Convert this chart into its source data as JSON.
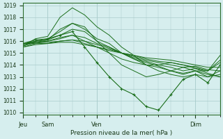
{
  "title": "",
  "xlabel": "Pression niveau de la mer( hPa )",
  "ylabel": "",
  "bg_color": "#d6eeee",
  "grid_color": "#aacccc",
  "line_color": "#1a6e1a",
  "marker_color": "#1a6e1a",
  "ylim": [
    1010,
    1019
  ],
  "yticks": [
    1010,
    1011,
    1012,
    1013,
    1014,
    1015,
    1016,
    1017,
    1018,
    1019
  ],
  "xtick_positions": [
    0,
    12,
    36,
    84
  ],
  "xtick_labels": [
    "Jeu",
    "Sam",
    "Ven",
    "Dim"
  ],
  "total_hours": 96,
  "lines": [
    {
      "x": [
        0,
        6,
        12,
        18,
        24,
        30,
        36,
        42,
        48,
        54,
        60,
        66,
        72,
        78,
        84,
        90,
        96
      ],
      "y": [
        1015.8,
        1016.1,
        1016.2,
        1016.5,
        1016.8,
        1015.5,
        1014.2,
        1013.0,
        1012.0,
        1011.5,
        1010.5,
        1010.2,
        1011.5,
        1012.8,
        1013.2,
        1012.5,
        1014.0
      ],
      "marker": true
    },
    {
      "x": [
        0,
        6,
        12,
        18,
        24,
        30,
        36,
        42,
        48,
        54,
        60,
        66,
        72,
        78,
        84,
        90,
        96
      ],
      "y": [
        1015.8,
        1016.0,
        1016.1,
        1017.0,
        1017.5,
        1017.2,
        1016.0,
        1015.0,
        1014.0,
        1013.5,
        1013.0,
        1013.2,
        1013.5,
        1013.8,
        1013.5,
        1013.5,
        1014.4
      ],
      "marker": false
    },
    {
      "x": [
        0,
        6,
        12,
        18,
        24,
        30,
        36,
        42,
        48,
        54,
        60,
        66,
        72,
        78,
        84,
        90,
        96
      ],
      "y": [
        1015.8,
        1015.9,
        1016.0,
        1016.3,
        1016.5,
        1016.0,
        1015.5,
        1015.0,
        1014.5,
        1014.2,
        1014.0,
        1014.0,
        1014.2,
        1014.0,
        1013.8,
        1013.5,
        1014.8
      ],
      "marker": false
    },
    {
      "x": [
        0,
        6,
        12,
        18,
        24,
        30,
        36,
        42,
        48,
        54,
        60,
        66,
        72,
        78,
        84,
        90,
        96
      ],
      "y": [
        1015.8,
        1015.9,
        1015.9,
        1016.0,
        1016.1,
        1015.8,
        1015.5,
        1015.2,
        1015.0,
        1014.8,
        1014.5,
        1014.3,
        1014.2,
        1014.0,
        1013.7,
        1013.5,
        1014.2
      ],
      "marker": false
    },
    {
      "x": [
        0,
        6,
        12,
        18,
        24,
        30,
        36,
        42,
        48,
        54,
        60,
        66,
        72,
        78,
        84,
        90,
        96
      ],
      "y": [
        1015.8,
        1015.8,
        1015.8,
        1015.9,
        1015.9,
        1015.7,
        1015.5,
        1015.3,
        1015.0,
        1014.8,
        1014.6,
        1014.5,
        1014.4,
        1014.2,
        1014.0,
        1013.8,
        1013.8
      ],
      "marker": false
    },
    {
      "x": [
        0,
        6,
        12,
        18,
        24,
        30,
        36,
        42,
        48,
        54,
        60,
        66,
        72,
        78,
        84,
        90,
        96
      ],
      "y": [
        1015.6,
        1016.2,
        1016.4,
        1018.0,
        1018.8,
        1018.2,
        1017.2,
        1016.5,
        1015.5,
        1014.8,
        1014.0,
        1013.5,
        1013.2,
        1013.0,
        1013.2,
        1013.0,
        1013.5
      ],
      "marker": false
    },
    {
      "x": [
        0,
        6,
        12,
        18,
        24,
        30,
        36,
        42,
        48,
        54,
        60,
        66,
        72,
        78,
        84,
        90,
        96
      ],
      "y": [
        1015.6,
        1016.0,
        1016.2,
        1016.8,
        1017.5,
        1017.0,
        1016.2,
        1015.8,
        1015.0,
        1014.5,
        1014.0,
        1013.8,
        1013.5,
        1013.2,
        1013.5,
        1013.0,
        1013.2
      ],
      "marker": false
    },
    {
      "x": [
        0,
        6,
        12,
        18,
        24,
        30,
        36,
        42,
        48,
        54,
        60,
        66,
        72,
        78,
        84,
        90,
        96
      ],
      "y": [
        1015.6,
        1015.9,
        1016.1,
        1016.5,
        1017.0,
        1016.8,
        1016.0,
        1015.5,
        1015.0,
        1014.5,
        1014.2,
        1013.9,
        1013.5,
        1013.3,
        1013.5,
        1013.2,
        1013.0
      ],
      "marker": false
    },
    {
      "x": [
        0,
        6,
        12,
        18,
        24,
        30,
        36,
        42,
        48,
        54,
        60,
        66,
        72,
        78,
        84,
        90,
        96
      ],
      "y": [
        1015.5,
        1015.8,
        1016.0,
        1016.2,
        1016.5,
        1016.3,
        1015.8,
        1015.5,
        1015.0,
        1014.6,
        1014.3,
        1014.0,
        1013.8,
        1013.5,
        1013.7,
        1013.3,
        1013.0
      ],
      "marker": false
    },
    {
      "x": [
        0,
        6,
        12,
        18,
        24,
        30,
        36,
        42,
        48,
        54,
        60,
        66,
        72,
        78,
        84,
        90,
        96
      ],
      "y": [
        1015.5,
        1015.7,
        1015.8,
        1016.0,
        1016.1,
        1016.0,
        1015.7,
        1015.4,
        1015.0,
        1014.7,
        1014.4,
        1014.2,
        1014.0,
        1013.8,
        1013.9,
        1013.6,
        1013.5
      ],
      "marker": false
    }
  ]
}
